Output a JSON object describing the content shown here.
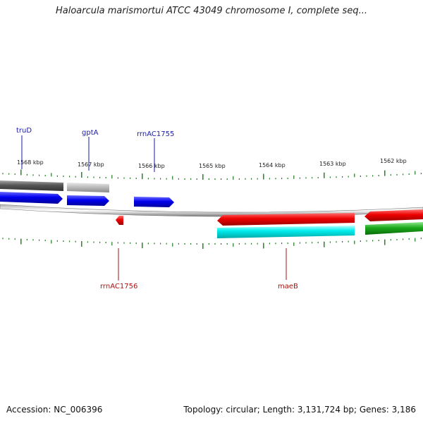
{
  "title": "Haloarcula marismortui ATCC 43049 chromosome I, complete seq...",
  "footer": {
    "accession": "Accession: NC_006396",
    "stats": "Topology: circular; Length: 3,131,724 bp; Genes: 3,186"
  },
  "colors": {
    "tick": "#1a7a1a",
    "forward_label": "#1a1aaa",
    "reverse_label": "#aa1111",
    "backbone": "#888888"
  },
  "scale_labels": [
    "1568 kbp",
    "1567 kbp",
    "1566 kbp",
    "1565 kbp",
    "1564 kbp",
    "1563 kbp",
    "1562 kbp"
  ],
  "gene_labels": {
    "forward": [
      "truD",
      "gptA",
      "rrnAC1755"
    ],
    "reverse": [
      "rrnAC1756",
      "maeB"
    ]
  }
}
